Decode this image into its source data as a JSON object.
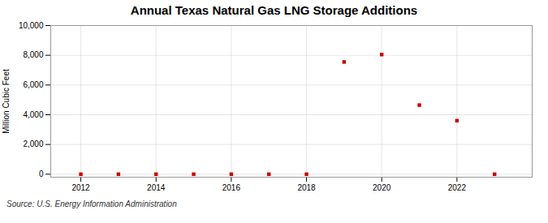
{
  "chart_data": {
    "type": "scatter",
    "title": "Annual Texas Natural Gas LNG Storage Additions",
    "ylabel": "Million Cubic Feet",
    "source": "Source: U.S. Energy Information Administration",
    "x": [
      2012,
      2013,
      2014,
      2015,
      2016,
      2017,
      2018,
      2019,
      2020,
      2021,
      2022,
      2023
    ],
    "values": [
      0,
      0,
      0,
      0,
      0,
      0,
      0,
      7550,
      8050,
      4650,
      3600,
      0
    ],
    "color": "#cc0000",
    "marker": "square",
    "xlim": [
      2011.2,
      2024.0
    ],
    "xticks": [
      2012,
      2014,
      2016,
      2018,
      2020,
      2022
    ],
    "ylim": [
      -200,
      10000
    ],
    "yticks": [
      0,
      {
        "value": 2000,
        "label": "2,000"
      },
      {
        "value": 4000,
        "label": "4,000"
      },
      {
        "value": 6000,
        "label": "6,000"
      },
      {
        "value": 8000,
        "label": "8,000"
      },
      {
        "value": 10000,
        "label": "10,000"
      }
    ],
    "grid": true
  }
}
